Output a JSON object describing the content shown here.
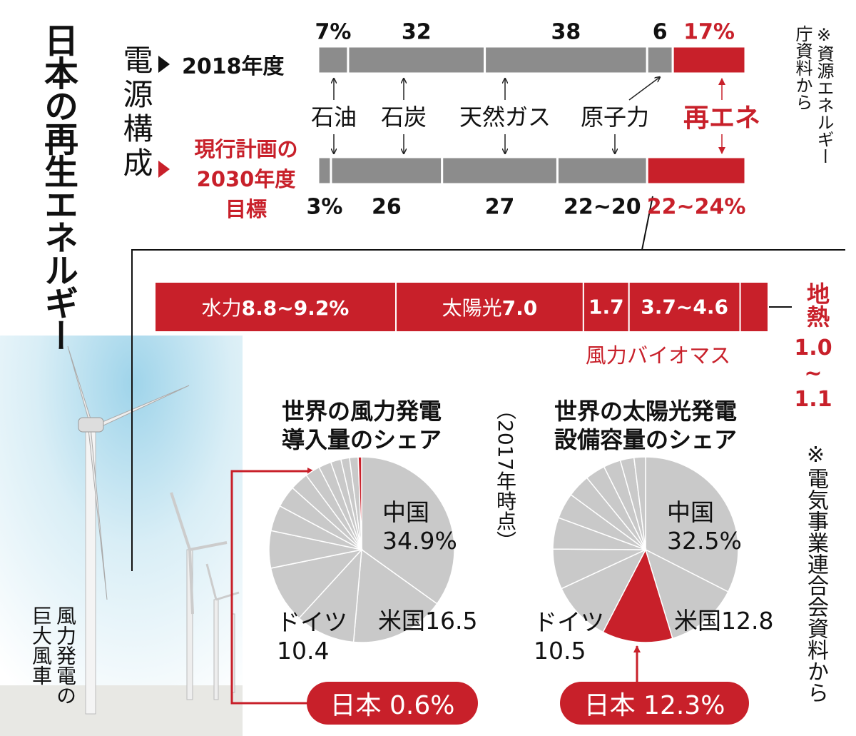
{
  "title": "日本の再生エネルギー",
  "section_label": "電源構成",
  "sources": [
    "※資源エネルギー庁資料から",
    "※電気事業連合会資料から"
  ],
  "photo_caption": "風力発電の巨大風車",
  "note": "（2017年時点）",
  "chart_data": [
    {
      "type": "stacked-bar",
      "categories": [
        "2018年度",
        "現行計画の\n2030年度\n目標"
      ],
      "xlim": [
        0,
        100
      ],
      "series": [
        {
          "name": "石油",
          "color": "#8c8c8c",
          "values": [
            7,
            3
          ],
          "value_labels": [
            "7%",
            "3%"
          ]
        },
        {
          "name": "石炭",
          "color": "#8c8c8c",
          "values": [
            32,
            26
          ]
        },
        {
          "name": "天然ガス",
          "color": "#8c8c8c",
          "values": [
            38,
            27
          ]
        },
        {
          "name": "原子力",
          "color": "#8c8c8c",
          "values": [
            6,
            21
          ],
          "value_labels": [
            "6",
            "22~20"
          ]
        },
        {
          "name": "再エネ",
          "color": "#c8202a",
          "values": [
            17,
            23
          ],
          "value_labels": [
            "17%",
            "22~24%"
          ]
        }
      ]
    },
    {
      "type": "segment-bar",
      "categories": [
        "水力",
        "太陽光",
        "風力",
        "バイオマス",
        "地熱"
      ],
      "values": [
        9,
        7.0,
        1.7,
        4.15,
        1.05
      ],
      "value_labels": [
        "8.8~9.2%",
        "7.0",
        "1.7",
        "3.7~4.6",
        "1.0~1.1"
      ],
      "color": "#c8202a"
    },
    {
      "type": "pie",
      "title": "世界の風力発電\n導入量のシェア",
      "categories": [
        "中国",
        "米国",
        "ドイツ",
        null,
        null,
        null,
        null,
        null,
        null,
        null,
        null,
        null,
        null,
        "日本"
      ],
      "values": [
        34.9,
        16.5,
        10.4,
        10.0,
        6.5,
        4.5,
        3.8,
        3.2,
        2.6,
        2.2,
        1.8,
        1.5,
        1.5,
        0.6
      ],
      "value_labels": [
        "34.9%",
        "16.5",
        "10.4",
        null,
        null,
        null,
        null,
        null,
        null,
        null,
        null,
        null,
        null,
        "0.6%"
      ],
      "color": "#c9c9c9",
      "highlight": "日本",
      "highlight_color": "#c8202a"
    },
    {
      "type": "pie",
      "title": "世界の太陽光発電\n設備容量のシェア",
      "categories": [
        "中国",
        "米国",
        "日本",
        "ドイツ",
        null,
        null,
        null,
        null,
        null,
        null,
        null,
        null
      ],
      "values": [
        32.5,
        12.8,
        12.3,
        10.5,
        7.0,
        5.5,
        4.5,
        4.0,
        3.5,
        3.0,
        2.4,
        2.0
      ],
      "value_labels": [
        "32.5%",
        "12.8",
        "12.3%",
        "10.5",
        null,
        null,
        null,
        null,
        null,
        null,
        null,
        null
      ],
      "color": "#c9c9c9",
      "highlight": "日本",
      "highlight_color": "#c8202a"
    }
  ]
}
